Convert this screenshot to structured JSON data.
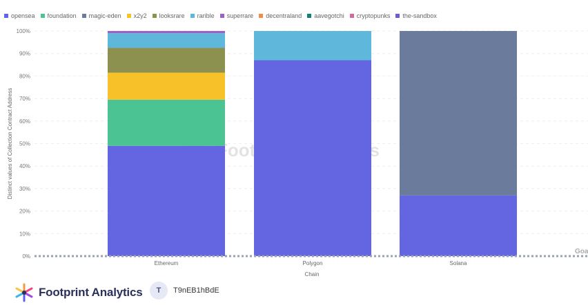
{
  "chart_data": {
    "type": "bar",
    "stacked": true,
    "normalized": true,
    "categories": [
      "Ethereum",
      "Polygon",
      "Solana"
    ],
    "series": [
      {
        "name": "opensea",
        "color": "#6366e0",
        "values": [
          49,
          87,
          27
        ]
      },
      {
        "name": "foundation",
        "color": "#4cc393",
        "values": [
          20.5,
          0,
          0
        ]
      },
      {
        "name": "magic-eden",
        "color": "#6b7b9c",
        "values": [
          0,
          0,
          73
        ]
      },
      {
        "name": "x2y2",
        "color": "#f7c12a",
        "values": [
          12,
          0,
          0
        ]
      },
      {
        "name": "looksrare",
        "color": "#8d9150",
        "values": [
          11,
          0,
          0
        ]
      },
      {
        "name": "rarible",
        "color": "#5fb8dc",
        "values": [
          6.5,
          13,
          0
        ]
      },
      {
        "name": "superrare",
        "color": "#9a62c7",
        "values": [
          1,
          0,
          0
        ]
      },
      {
        "name": "decentraland",
        "color": "#ef8c4b",
        "values": [
          0,
          0,
          0
        ]
      },
      {
        "name": "aavegotchi",
        "color": "#138071",
        "values": [
          0,
          0,
          0
        ]
      },
      {
        "name": "cryptopunks",
        "color": "#d46a9a",
        "values": [
          0,
          0,
          0
        ]
      },
      {
        "name": "the-sandbox",
        "color": "#6a5cd6",
        "values": [
          0,
          0,
          0
        ]
      }
    ],
    "yticks": [
      "0%",
      "10%",
      "20%",
      "30%",
      "40%",
      "50%",
      "60%",
      "70%",
      "80%",
      "90%",
      "100%"
    ],
    "ylim": [
      0,
      100
    ],
    "xlabel": "Chain",
    "ylabel": "Distinct values of Collection Contract Address",
    "goal_label": "Goa",
    "legend_position": "top-left",
    "grid": true
  },
  "watermark": "Footprint Analytics",
  "footer": {
    "brand": "Footprint Analytics",
    "avatar_letter": "T",
    "username": "T9nEB1hBdE"
  }
}
